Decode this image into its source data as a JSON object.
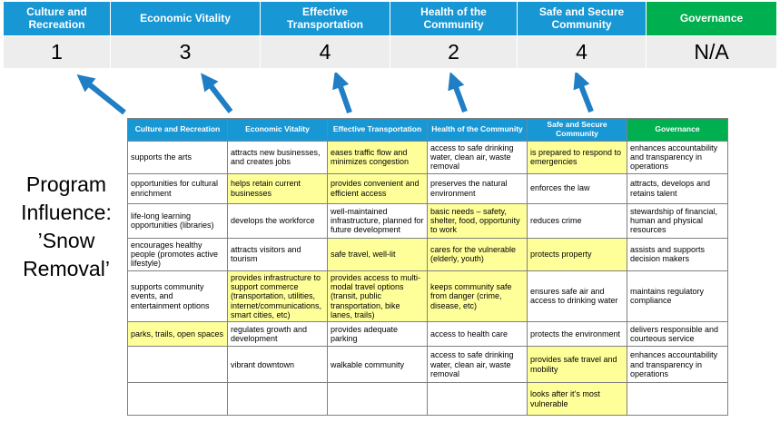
{
  "title": {
    "text": "Program Influence: ’Snow Removal’"
  },
  "summary": {
    "columns": [
      {
        "label": "Culture and Recreation",
        "score": "1",
        "theme": "blue"
      },
      {
        "label": "Economic Vitality",
        "score": "3",
        "theme": "blue"
      },
      {
        "label": "Effective Transportation",
        "score": "4",
        "theme": "blue"
      },
      {
        "label": "Health of the Community",
        "score": "2",
        "theme": "blue"
      },
      {
        "label": "Safe and Secure Community",
        "score": "4",
        "theme": "blue"
      },
      {
        "label": "Governance",
        "score": "N/A",
        "theme": "green"
      }
    ]
  },
  "arrows": {
    "icon": "up-arrow",
    "count": 5
  },
  "matrix": {
    "headers": [
      {
        "label": "Culture and Recreation",
        "theme": "blue"
      },
      {
        "label": "Economic Vitality",
        "theme": "blue"
      },
      {
        "label": "Effective Transportation",
        "theme": "blue"
      },
      {
        "label": "Health of the Community",
        "theme": "blue"
      },
      {
        "label": "Safe and Secure Community",
        "theme": "blue"
      },
      {
        "label": "Governance",
        "theme": "green"
      }
    ],
    "rows": [
      [
        {
          "text": "supports the arts",
          "highlight": false
        },
        {
          "text": "attracts new businesses, and creates jobs",
          "highlight": false
        },
        {
          "text": "eases traffic flow and minimizes congestion",
          "highlight": true
        },
        {
          "text": "access to safe drinking water, clean air, waste removal",
          "highlight": false
        },
        {
          "text": "is prepared to respond to emergencies",
          "highlight": true
        },
        {
          "text": "enhances accountability and transparency in operations",
          "highlight": false
        }
      ],
      [
        {
          "text": "opportunities for cultural enrichment",
          "highlight": false
        },
        {
          "text": "helps retain current businesses",
          "highlight": true
        },
        {
          "text": "provides convenient and efficient access",
          "highlight": true
        },
        {
          "text": "preserves the natural environment",
          "highlight": false
        },
        {
          "text": "enforces the law",
          "highlight": false
        },
        {
          "text": "attracts, develops and retains talent",
          "highlight": false
        }
      ],
      [
        {
          "text": "life-long learning opportunities (libraries)",
          "highlight": false
        },
        {
          "text": "develops the workforce",
          "highlight": false
        },
        {
          "text": "well-maintained infrastructure, planned for future development",
          "highlight": false
        },
        {
          "text": "basic needs – safety, shelter, food, opportunity to work",
          "highlight": true
        },
        {
          "text": "reduces crime",
          "highlight": false
        },
        {
          "text": "stewardship of financial, human and physical resources",
          "highlight": false
        }
      ],
      [
        {
          "text": "encourages healthy people (promotes active lifestyle)",
          "highlight": false
        },
        {
          "text": "attracts visitors and tourism",
          "highlight": false
        },
        {
          "text": "safe travel, well-lit",
          "highlight": true
        },
        {
          "text": "cares for the vulnerable (elderly, youth)",
          "highlight": true
        },
        {
          "text": "protects property",
          "highlight": true
        },
        {
          "text": "assists and supports decision makers",
          "highlight": false
        }
      ],
      [
        {
          "text": "supports community events, and entertainment options",
          "highlight": false
        },
        {
          "text": "provides infrastructure to support commerce (transportation, utilities, internet/communications, smart cities, etc)",
          "highlight": true
        },
        {
          "text": "provides access to multi-modal travel options (transit, public transportation, bike lanes, trails)",
          "highlight": true
        },
        {
          "text": "keeps community safe from danger (crime, disease, etc)",
          "highlight": true
        },
        {
          "text": "ensures safe air and access to drinking water",
          "highlight": false
        },
        {
          "text": "maintains regulatory compliance",
          "highlight": false
        }
      ],
      [
        {
          "text": "parks, trails, open spaces",
          "highlight": true
        },
        {
          "text": "regulates growth and development",
          "highlight": false
        },
        {
          "text": "provides adequate parking",
          "highlight": false
        },
        {
          "text": "access to health care",
          "highlight": false
        },
        {
          "text": "protects the environment",
          "highlight": false
        },
        {
          "text": "delivers responsible and courteous service",
          "highlight": false
        }
      ],
      [
        {
          "text": "",
          "highlight": false
        },
        {
          "text": "vibrant downtown",
          "highlight": false
        },
        {
          "text": "walkable community",
          "highlight": false
        },
        {
          "text": "access to safe drinking water, clean air, waste removal",
          "highlight": false
        },
        {
          "text": "provides safe travel and mobility",
          "highlight": true
        },
        {
          "text": "enhances accountability and transparency in operations",
          "highlight": false
        }
      ],
      [
        {
          "text": "",
          "highlight": false
        },
        {
          "text": "",
          "highlight": false
        },
        {
          "text": "",
          "highlight": false
        },
        {
          "text": "",
          "highlight": false
        },
        {
          "text": "looks after it’s most vulnerable",
          "highlight": true
        },
        {
          "text": "",
          "highlight": false
        }
      ]
    ]
  },
  "colors": {
    "header_blue": "#1897D5",
    "header_green": "#00B050",
    "highlight_yellow": "#FFFF99",
    "score_band": "#EDEDED",
    "arrow_blue": "#1F7EC4",
    "border_gray": "#808080"
  }
}
